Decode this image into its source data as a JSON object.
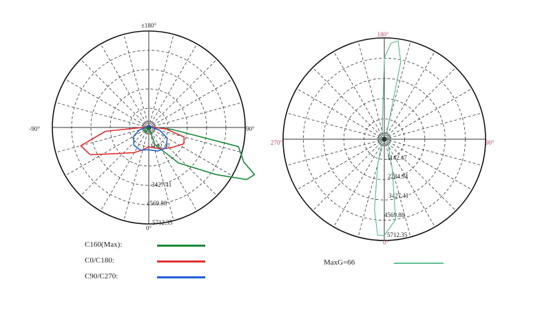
{
  "chart_data": [
    {
      "type": "polar",
      "title": "",
      "angle_labels": {
        "top": "±180°",
        "left": "-90°",
        "right": "90°",
        "bottom": "0°"
      },
      "radial_labels": [
        "1142.47",
        "3427.41",
        "4569.88",
        "5712.35"
      ],
      "rmax": 5712.35,
      "grid": true,
      "angle_label_color": "#222222",
      "series": [
        {
          "name": "C160(Max):",
          "color": "#1a8a3a",
          "points": [
            [
              0,
              0
            ],
            [
              20,
              0.19
            ],
            [
              40,
              0.48
            ],
            [
              55,
              0.85
            ],
            [
              62,
              1.15
            ],
            [
              66,
              1.2
            ],
            [
              70,
              1.05
            ],
            [
              78,
              0.95
            ],
            [
              85,
              0.25
            ],
            [
              90,
              0.08
            ],
            [
              100,
              0.03
            ],
            [
              180,
              0.02
            ],
            [
              270,
              0.02
            ],
            [
              300,
              0.05
            ],
            [
              330,
              0.06
            ],
            [
              360,
              0
            ]
          ]
        },
        {
          "name": "C0/C180:",
          "color": "#e03030",
          "points": [
            [
              0,
              0.2
            ],
            [
              30,
              0.26
            ],
            [
              50,
              0.32
            ],
            [
              65,
              0.4
            ],
            [
              75,
              0.38
            ],
            [
              85,
              0.18
            ],
            [
              92,
              0.05
            ],
            [
              180,
              0.02
            ],
            [
              268,
              0.05
            ],
            [
              275,
              0.45
            ],
            [
              285,
              0.73
            ],
            [
              295,
              0.67
            ],
            [
              310,
              0.42
            ],
            [
              330,
              0.3
            ],
            [
              345,
              0.24
            ],
            [
              360,
              0.2
            ]
          ]
        },
        {
          "name": "C90/C270:",
          "color": "#2060d0",
          "points": [
            [
              0,
              0.23
            ],
            [
              20,
              0.26
            ],
            [
              40,
              0.28
            ],
            [
              60,
              0.22
            ],
            [
              75,
              0.12
            ],
            [
              90,
              0.04
            ],
            [
              180,
              0.02
            ],
            [
              270,
              0.04
            ],
            [
              285,
              0.1
            ],
            [
              300,
              0.18
            ],
            [
              320,
              0.24
            ],
            [
              340,
              0.25
            ],
            [
              360,
              0.23
            ]
          ]
        }
      ],
      "legend": "bottom-left"
    },
    {
      "type": "polar",
      "title": "",
      "angle_labels": {
        "top": "180°",
        "left": "270°",
        "right": "90°",
        "bottom": "0°"
      },
      "radial_labels": [
        "1142.47",
        "2284.94",
        "3427.41",
        "4569.88",
        "5712.35"
      ],
      "rmax": 5712.35,
      "grid": true,
      "angle_label_color": "#b05070",
      "series": [
        {
          "name": "MaxG=66",
          "color": "#5fbf8f",
          "points": [
            [
              0,
              0.95
            ],
            [
              8,
              0.8
            ],
            [
              15,
              0.3
            ],
            [
              30,
              0.08
            ],
            [
              90,
              0.03
            ],
            [
              160,
              0.08
            ],
            [
              168,
              0.78
            ],
            [
              172,
              0.98
            ],
            [
              176,
              0.95
            ],
            [
              180,
              0.8
            ],
            [
              185,
              0.2
            ],
            [
              200,
              0.06
            ],
            [
              270,
              0.03
            ],
            [
              330,
              0.05
            ],
            [
              345,
              0.25
            ],
            [
              352,
              0.7
            ],
            [
              356,
              0.95
            ],
            [
              360,
              0.95
            ]
          ]
        }
      ],
      "legend": "bottom"
    }
  ]
}
